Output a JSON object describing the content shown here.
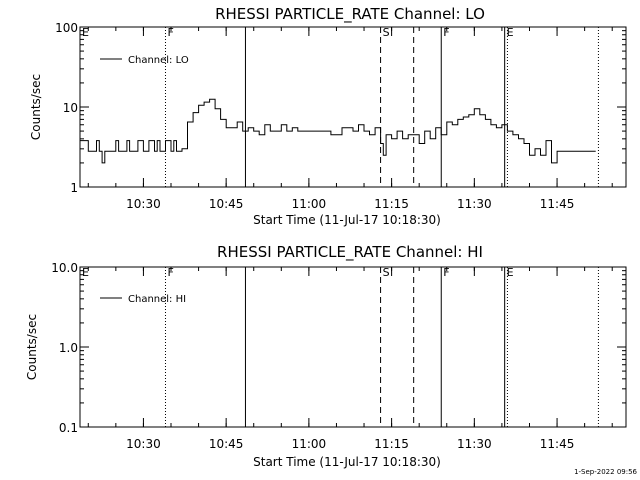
{
  "footer_timestamp": "1-Sep-2022 09:56",
  "chart_data": [
    {
      "type": "line",
      "title": "RHESSI PARTICLE_RATE Channel: LO",
      "xlabel": "Start Time (11-Jul-17 10:18:30)",
      "ylabel": "Counts/sec",
      "y_scale": "log",
      "ylim": [
        1,
        100
      ],
      "y_ticks": [
        {
          "v": 1,
          "label": "1"
        },
        {
          "v": 10,
          "label": "10"
        },
        {
          "v": 100,
          "label": "100"
        }
      ],
      "xlim": [
        "10:18:30",
        "11:57:30"
      ],
      "x_ticks": [
        "10:30",
        "10:45",
        "11:00",
        "11:15",
        "11:30",
        "11:45"
      ],
      "legend": {
        "label": "Channel: LO",
        "position": "top-left"
      },
      "series": [
        {
          "label": "Channel: LO",
          "x": [
            "10:18:30",
            "10:20:00",
            "10:21:00",
            "10:21:30",
            "10:22:00",
            "10:22:30",
            "10:23:00",
            "10:24:00",
            "10:25:00",
            "10:25:30",
            "10:26:00",
            "10:27:00",
            "10:27:30",
            "10:28:00",
            "10:29:00",
            "10:30:00",
            "10:31:00",
            "10:32:00",
            "10:32:30",
            "10:33:00",
            "10:34:00",
            "10:35:00",
            "10:35:30",
            "10:36:00",
            "10:37:00",
            "10:38:00",
            "10:39:00",
            "10:40:00",
            "10:41:00",
            "10:42:00",
            "10:43:00",
            "10:44:00",
            "10:45:00",
            "10:46:00",
            "10:47:00",
            "10:48:00",
            "10:49:00",
            "10:50:00",
            "10:51:00",
            "10:52:00",
            "10:53:00",
            "10:54:00",
            "10:55:00",
            "10:56:00",
            "10:57:00",
            "10:58:00",
            "11:00:00",
            "11:02:00",
            "11:04:00",
            "11:06:00",
            "11:08:00",
            "11:09:00",
            "11:10:00",
            "11:11:00",
            "11:12:00",
            "11:13:00",
            "11:13:30",
            "11:14:00",
            "11:15:00",
            "11:16:00",
            "11:17:00",
            "11:18:00",
            "11:19:00",
            "11:20:00",
            "11:21:00",
            "11:22:00",
            "11:23:00",
            "11:24:00",
            "11:25:00",
            "11:26:00",
            "11:27:00",
            "11:28:00",
            "11:29:00",
            "11:30:00",
            "11:31:00",
            "11:32:00",
            "11:33:00",
            "11:34:00",
            "11:35:00",
            "11:36:00",
            "11:37:00",
            "11:38:00",
            "11:39:00",
            "11:40:00",
            "11:41:00",
            "11:42:00",
            "11:43:00",
            "11:44:00",
            "11:45:00",
            "11:46:00",
            "11:48:00",
            "11:50:00",
            "11:52:00"
          ],
          "y": [
            3.8,
            2.8,
            2.8,
            3.8,
            2.8,
            2.0,
            2.8,
            2.8,
            3.8,
            2.8,
            2.8,
            3.8,
            2.8,
            2.8,
            3.8,
            2.8,
            3.8,
            2.8,
            3.8,
            2.8,
            3.8,
            2.8,
            3.8,
            2.8,
            3.0,
            6.5,
            8.5,
            10.5,
            11.5,
            12.5,
            9.5,
            7.0,
            5.5,
            5.5,
            6.5,
            5.0,
            5.5,
            5.0,
            4.5,
            6.0,
            5.0,
            5.0,
            6.0,
            5.0,
            5.5,
            5.0,
            5.0,
            5.0,
            4.5,
            5.5,
            5.0,
            6.0,
            5.0,
            4.5,
            5.5,
            3.5,
            2.5,
            4.5,
            4.0,
            5.0,
            4.0,
            4.5,
            4.5,
            3.5,
            5.0,
            4.0,
            5.5,
            4.5,
            6.5,
            6.0,
            7.0,
            7.5,
            8.0,
            9.5,
            8.0,
            7.0,
            6.0,
            5.5,
            6.0,
            5.0,
            4.5,
            4.0,
            3.5,
            2.5,
            3.0,
            2.5,
            3.8,
            2.0,
            2.8,
            2.8,
            2.8,
            2.8,
            2.8
          ]
        }
      ],
      "markers": [
        {
          "x": "10:34:00",
          "style": "dotted",
          "label": "F"
        },
        {
          "x": "10:48:30",
          "style": "solid",
          "label": ""
        },
        {
          "x": "11:13:00",
          "style": "dashed",
          "label": "S"
        },
        {
          "x": "11:19:00",
          "style": "dashed",
          "label": ""
        },
        {
          "x": "11:24:00",
          "style": "solid",
          "label": "F"
        },
        {
          "x": "11:35:30",
          "style": "solid",
          "label": "E"
        },
        {
          "x": "11:36:00",
          "style": "dotted",
          "label": ""
        },
        {
          "x": "11:52:30",
          "style": "dotted",
          "label": ""
        }
      ],
      "corner_label": "E"
    },
    {
      "type": "line",
      "title": "RHESSI PARTICLE_RATE Channel: HI",
      "xlabel": "Start Time (11-Jul-17 10:18:30)",
      "ylabel": "Counts/sec",
      "y_scale": "log",
      "ylim": [
        0.1,
        10
      ],
      "y_ticks": [
        {
          "v": 0.1,
          "label": "0.1"
        },
        {
          "v": 1,
          "label": "1.0"
        },
        {
          "v": 10,
          "label": "10.0"
        }
      ],
      "xlim": [
        "10:18:30",
        "11:57:30"
      ],
      "x_ticks": [
        "10:30",
        "10:45",
        "11:00",
        "11:15",
        "11:30",
        "11:45"
      ],
      "legend": {
        "label": "Channel: HI",
        "position": "top-left"
      },
      "series": [
        {
          "label": "Channel: HI",
          "x": [],
          "y": []
        }
      ],
      "markers": [
        {
          "x": "10:34:00",
          "style": "dotted",
          "label": "F"
        },
        {
          "x": "10:48:30",
          "style": "solid",
          "label": ""
        },
        {
          "x": "11:13:00",
          "style": "dashed",
          "label": "S"
        },
        {
          "x": "11:19:00",
          "style": "dashed",
          "label": ""
        },
        {
          "x": "11:24:00",
          "style": "solid",
          "label": "F"
        },
        {
          "x": "11:35:30",
          "style": "solid",
          "label": "E"
        },
        {
          "x": "11:36:00",
          "style": "dotted",
          "label": ""
        },
        {
          "x": "11:52:30",
          "style": "dotted",
          "label": ""
        }
      ],
      "corner_label": "E"
    }
  ]
}
